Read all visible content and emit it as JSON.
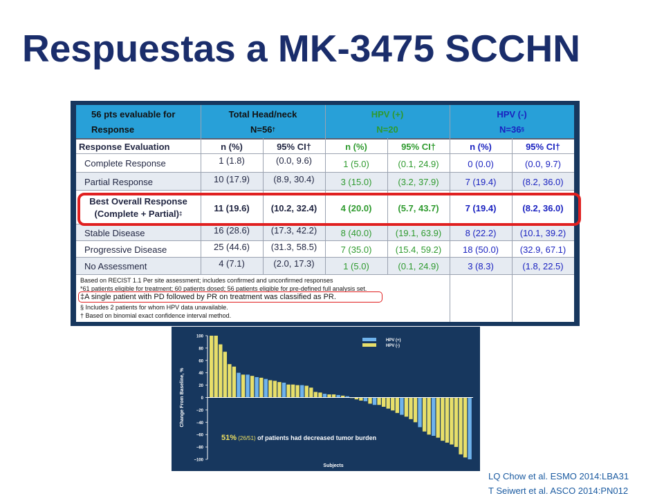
{
  "title": "Respuestas a MK-3475 SCCHN",
  "table": {
    "header": {
      "col0_line1": "56 pts evaluable for",
      "col0_line2": "Response",
      "total_line1": "Total Head/neck",
      "total_line2": "N=56",
      "total_mark": "†",
      "hpvpos_line1": "HPV (+)",
      "hpvpos_line2": "N=20",
      "hpvneg_line1": "HPV (-)",
      "hpvneg_line2": "N=36",
      "hpvneg_mark": "§"
    },
    "subheader": {
      "label": "Response Evaluation",
      "n1": "n (%)",
      "ci1": "95% CI†",
      "n2": "n (%)",
      "ci2": "95% CI†",
      "n3": "n (%)",
      "ci3": "95% CI†"
    },
    "rows": [
      {
        "label": "Complete Response",
        "n1": "1 (1.8)",
        "ci1": "(0.0, 9.6)",
        "n2": "1 (5.0)",
        "ci2": "(0.1, 24.9)",
        "n3": "0 (0.0)",
        "ci3": "(0.0, 9.7)"
      },
      {
        "label": "Partial Response",
        "n1": "10 (17.9)",
        "ci1": "(8.9, 30.4)",
        "n2": "3 (15.0)",
        "ci2": "(3.2, 37.9)",
        "n3": "7 (19.4)",
        "ci3": "(8.2, 36.0)"
      },
      {
        "label": "Best Overall Response",
        "label2": "(Complete + Partial)",
        "mark": "‡",
        "n1": "11 (19.6)",
        "ci1": "(10.2, 32.4)",
        "n2": "4 (20.0)",
        "ci2": "(5.7, 43.7)",
        "n3": "7 (19.4)",
        "ci3": "(8.2, 36.0)"
      },
      {
        "label": "Stable Disease",
        "n1": "16 (28.6)",
        "ci1": "(17.3, 42.2)",
        "n2": "8 (40.0)",
        "ci2": "(19.1, 63.9)",
        "n3": "8 (22.2)",
        "ci3": "(10.1, 39.2)"
      },
      {
        "label": "Progressive Disease",
        "n1": "25 (44.6)",
        "ci1": "(31.3, 58.5)",
        "n2": "7 (35.0)",
        "ci2": "(15.4, 59.2)",
        "n3": "18 (50.0)",
        "ci3": "(32.9, 67.1)"
      },
      {
        "label": "No Assessment",
        "n1": "4 (7.1)",
        "ci1": "(2.0, 17.3)",
        "n2": "1 (5.0)",
        "ci2": "(0.1, 24.9)",
        "n3": "3 (8.3)",
        "ci3": "(1.8, 22.5)"
      }
    ],
    "footnotes": [
      "Based on RECIST 1.1 Per site assessment; includes confirmed and unconfirmed responses",
      "*61 patients eligible for treatment; 60 patients dosed; 56 patients eligible for pre-defined full analysis set.",
      "‡A single patient with PD followed by PR on treatment was classified as PR.",
      "§ Includes 2 patients for whom HPV data unavailable.",
      "† Based on binomial exact confidence interval method."
    ],
    "colors": {
      "header": "#28a0d8",
      "frame": "#17375e",
      "green": "#2e9a2e",
      "blue": "#1a22c0",
      "highlight": "#e02020"
    }
  },
  "chart_data": {
    "type": "bar",
    "title": "",
    "xlabel": "Subjects",
    "ylabel": "Change From Baseline, %",
    "ylim": [
      -100,
      100
    ],
    "yticks": [
      "100",
      "80",
      "60",
      "40",
      "20",
      "0",
      "−20",
      "−40",
      "−60",
      "−80",
      "−100"
    ],
    "legend": [
      "HPV (+)",
      "HPV (-)"
    ],
    "legend_position": "top-right",
    "series_colors": {
      "HPV (+)": "#6fb3ec",
      "HPV (-)": "#e8df6a"
    },
    "values": [
      100,
      100,
      86,
      74,
      54,
      50,
      40,
      37,
      37,
      35,
      33,
      32,
      30,
      28,
      27,
      25,
      24,
      21,
      21,
      20,
      20,
      19,
      16,
      9,
      8,
      6,
      5,
      5,
      4,
      3,
      2,
      0,
      -3,
      -5,
      -6,
      -10,
      -12,
      -12,
      -15,
      -18,
      -21,
      -25,
      -28,
      -31,
      -35,
      -40,
      -48,
      -55,
      -60,
      -62,
      -65,
      -70,
      -73,
      -76,
      -80,
      -92,
      -97,
      -100
    ],
    "groups": [
      "-",
      "-",
      "-",
      "-",
      "-",
      "-",
      "+",
      "-",
      "+",
      "-",
      "+",
      "-",
      "+",
      "-",
      "-",
      "-",
      "+",
      "-",
      "-",
      "-",
      "+",
      "-",
      "-",
      "-",
      "-",
      "+",
      "-",
      "-",
      "+",
      "-",
      "+",
      "-",
      "-",
      "-",
      "+",
      "-",
      "+",
      "-",
      "-",
      "-",
      "-",
      "-",
      "+",
      "-",
      "-",
      "-",
      "+",
      "-",
      "-",
      "+",
      "-",
      "-",
      "-",
      "-",
      "-",
      "-",
      "-",
      "+"
    ],
    "annotation_bold": "51%",
    "annotation_sub": " (26/51)",
    "annotation_rest": " of patients had decreased tumor burden"
  },
  "references": [
    "LQ Chow et al. ESMO 2014:LBA31",
    "T Seiwert et al. ASCO 2014:PN012"
  ]
}
